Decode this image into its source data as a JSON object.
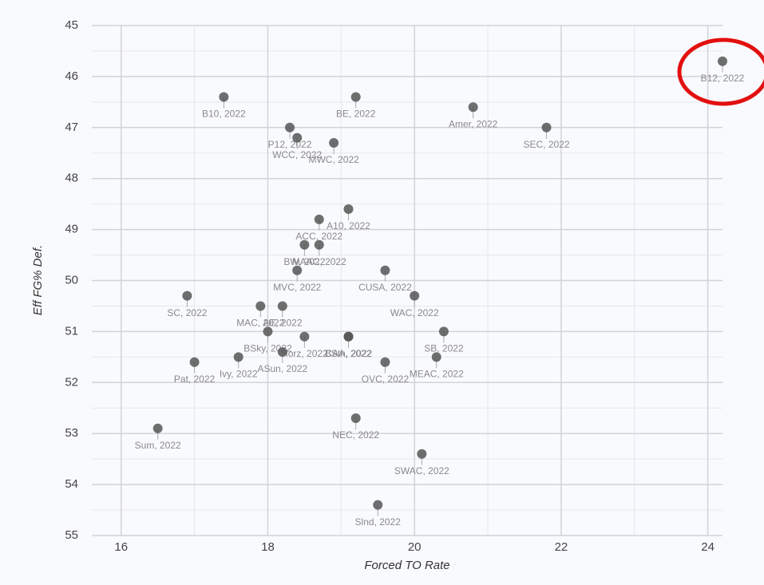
{
  "chart_data": {
    "type": "scatter",
    "x_label": "Forced TO Rate",
    "y_label": "Eff FG% Def.",
    "labels": [
      "B12, 2022",
      "B10, 2022",
      "BE, 2022",
      "Amer, 2022",
      "SEC, 2022",
      "P12, 2022",
      "WCC, 2022",
      "MWC, 2022",
      "A10, 2022",
      "ACC, 2022",
      "BW, 2022",
      "MAAC, 2022",
      "MVC, 2022",
      "CUSA, 2022",
      "SC, 2022",
      "WAC, 2022",
      "MAC, 2022",
      "AE, 2022",
      "BSky, 2022",
      "Horz, 2022",
      "CAA, 2022",
      "BSth, 2022",
      "SB, 2022",
      "ASun, 2022",
      "MEAC, 2022",
      "OVC, 2022",
      "Ivy, 2022",
      "Pat, 2022",
      "NEC, 2022",
      "Sum, 2022",
      "SWAC, 2022",
      "Slnd, 2022"
    ],
    "x": [
      24.2,
      17.4,
      19.2,
      20.8,
      21.8,
      18.3,
      18.4,
      18.9,
      19.1,
      18.7,
      18.5,
      18.7,
      18.4,
      19.6,
      16.9,
      20.0,
      17.9,
      18.2,
      18.0,
      18.5,
      19.1,
      19.1,
      20.4,
      18.2,
      20.3,
      19.6,
      17.6,
      17.0,
      19.2,
      16.5,
      20.1,
      19.5
    ],
    "values": [
      45.7,
      46.4,
      46.4,
      46.6,
      47.0,
      47.0,
      47.2,
      47.3,
      48.6,
      48.8,
      49.3,
      49.3,
      49.8,
      49.8,
      50.3,
      50.3,
      50.5,
      50.5,
      51.0,
      51.1,
      51.1,
      51.1,
      51.0,
      51.4,
      51.5,
      51.6,
      51.5,
      51.6,
      52.7,
      52.9,
      53.4,
      54.4
    ],
    "color": "#555555",
    "xlim": [
      15.6,
      24.2
    ],
    "xticks": [
      16,
      18,
      20,
      22,
      24
    ],
    "x_minor_ticks": [
      17,
      19,
      21,
      23
    ],
    "ylim": [
      55,
      45
    ],
    "yticks": [
      45,
      46,
      47,
      48,
      49,
      50,
      51,
      52,
      53,
      54,
      55
    ],
    "y_minor_ticks": [
      45.5,
      46.5,
      47.5,
      48.5,
      49.5,
      50.5,
      51.5,
      52.5,
      53.5,
      54.5
    ],
    "grid": true
  }
}
